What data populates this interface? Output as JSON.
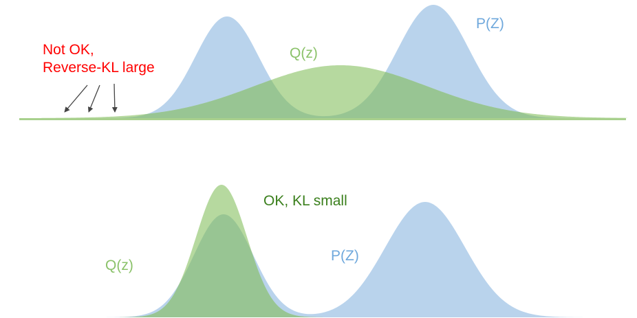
{
  "colors": {
    "p_fill": "#b9d3ec",
    "q_fill": "#b6d99f",
    "overlap_fill": "#98c593",
    "baseline_fill": "#a8d08d",
    "warning_text": "#ff0000",
    "ok_text": "#3a7f1c",
    "q_text": "#8bc26a",
    "p_text": "#6fa8dc",
    "arrow": "#444444"
  },
  "top_panel": {
    "warning_line1": "Not OK,",
    "warning_line2": "Reverse-KL large",
    "q_label": "Q(z)",
    "p_label": "P(Z)"
  },
  "bottom_panel": {
    "ok_label": "OK, KL small",
    "q_label": "Q(z)",
    "p_label": "P(Z)"
  }
}
